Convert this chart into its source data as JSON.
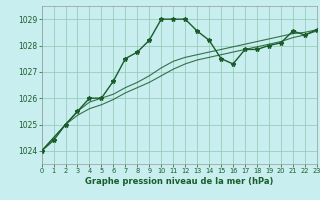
{
  "title": "Graphe pression niveau de la mer (hPa)",
  "background_color": "#c8eef0",
  "grid_color": "#99ccbb",
  "line_color": "#1a5c2a",
  "line_color2": "#2d7a3a",
  "xlim": [
    0,
    23
  ],
  "ylim": [
    1023.5,
    1029.5
  ],
  "yticks": [
    1024,
    1025,
    1026,
    1027,
    1028,
    1029
  ],
  "xticks": [
    0,
    1,
    2,
    3,
    4,
    5,
    6,
    7,
    8,
    9,
    10,
    11,
    12,
    13,
    14,
    15,
    16,
    17,
    18,
    19,
    20,
    21,
    22,
    23
  ],
  "series1_x": [
    0,
    1,
    2,
    3,
    4,
    5,
    6,
    7,
    8,
    9,
    10,
    11,
    12,
    13,
    14,
    15,
    16,
    17,
    18,
    19,
    20,
    21,
    22,
    23
  ],
  "series1_y": [
    1024.0,
    1024.4,
    1025.0,
    1025.5,
    1026.0,
    1026.0,
    1026.65,
    1027.5,
    1027.75,
    1028.2,
    1029.0,
    1029.0,
    1029.0,
    1028.55,
    1028.2,
    1027.5,
    1027.3,
    1027.85,
    1027.85,
    1028.0,
    1028.1,
    1028.55,
    1028.4,
    1028.6
  ],
  "series2_x": [
    0,
    2,
    3,
    4,
    5,
    6,
    7,
    8,
    9,
    10,
    11,
    12,
    13,
    14,
    15,
    16,
    17,
    18,
    19,
    20,
    21,
    22,
    23
  ],
  "series2_y": [
    1024.0,
    1025.0,
    1025.5,
    1025.85,
    1026.0,
    1026.15,
    1026.4,
    1026.6,
    1026.85,
    1027.15,
    1027.4,
    1027.55,
    1027.65,
    1027.75,
    1027.85,
    1027.95,
    1028.05,
    1028.15,
    1028.25,
    1028.35,
    1028.45,
    1028.5,
    1028.6
  ],
  "series3_x": [
    0,
    2,
    3,
    4,
    5,
    6,
    7,
    8,
    9,
    10,
    11,
    12,
    13,
    14,
    15,
    16,
    17,
    18,
    19,
    20,
    21,
    22,
    23
  ],
  "series3_y": [
    1024.0,
    1025.0,
    1025.35,
    1025.6,
    1025.75,
    1025.95,
    1026.2,
    1026.4,
    1026.6,
    1026.85,
    1027.1,
    1027.3,
    1027.45,
    1027.55,
    1027.65,
    1027.75,
    1027.85,
    1027.95,
    1028.05,
    1028.15,
    1028.3,
    1028.4,
    1028.55
  ]
}
